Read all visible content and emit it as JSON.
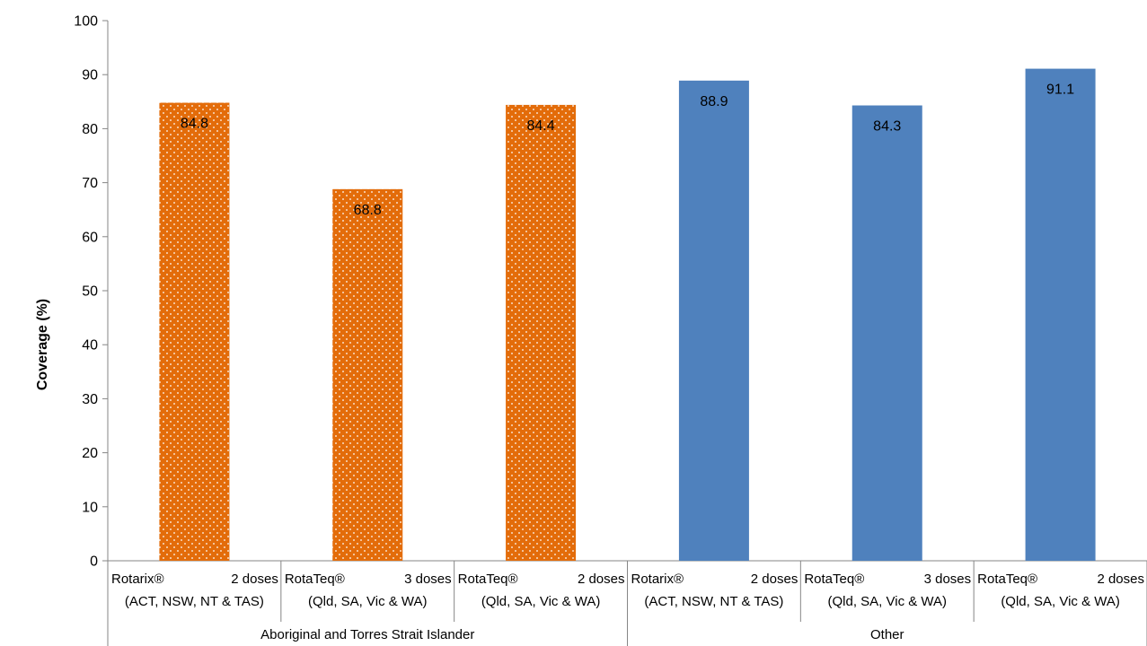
{
  "chart_data": {
    "type": "bar",
    "ylabel": "Coverage (%)",
    "xlabel": "",
    "ylim": [
      0,
      100
    ],
    "yticks": [
      0,
      10,
      20,
      30,
      40,
      50,
      60,
      70,
      80,
      90,
      100
    ],
    "groups": [
      {
        "name": "Aboriginal and Torres Strait Islander",
        "color": "#E36C0A",
        "pattern": "dotted",
        "bars": [
          {
            "vaccine": "Rotarix®",
            "doses": "2 doses",
            "states": "(ACT, NSW, NT & TAS)",
            "value": 84.8,
            "label": "84.8"
          },
          {
            "vaccine": "RotaTeq®",
            "doses": "3 doses",
            "states": "(Qld, SA, Vic & WA)",
            "value": 68.8,
            "label": "68.8"
          },
          {
            "vaccine": "RotaTeq®",
            "doses": "2 doses",
            "states": "(Qld, SA, Vic & WA)",
            "value": 84.4,
            "label": "84.4"
          }
        ]
      },
      {
        "name": "Other",
        "color": "#4F81BD",
        "pattern": "solid",
        "bars": [
          {
            "vaccine": "Rotarix®",
            "doses": "2 doses",
            "states": "(ACT, NSW, NT & TAS)",
            "value": 88.9,
            "label": "88.9"
          },
          {
            "vaccine": "RotaTeq®",
            "doses": "3 doses",
            "states": "(Qld, SA, Vic & WA)",
            "value": 84.3,
            "label": "84.3"
          },
          {
            "vaccine": "RotaTeq®",
            "doses": "2 doses",
            "states": "(Qld, SA, Vic & WA)",
            "value": 91.1,
            "label": "91.1"
          }
        ]
      }
    ],
    "grid": false,
    "legend": "none"
  }
}
